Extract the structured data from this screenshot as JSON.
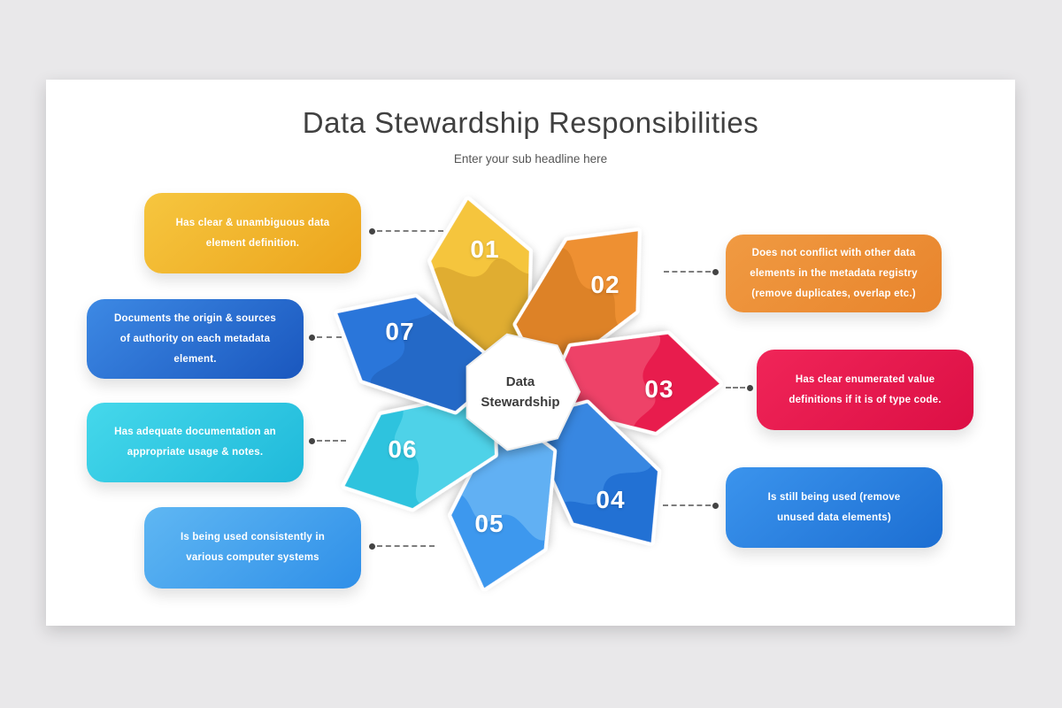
{
  "header": {
    "title": "Data Stewardship Responsibilities",
    "subtitle": "Enter your sub headline here"
  },
  "center": {
    "line1": "Data",
    "line2": "Stewardship"
  },
  "connector": {
    "dot_color": "#454545",
    "dash_color": "#7d7d7d"
  },
  "items": [
    {
      "number": "01",
      "text": "Has clear & unambiguous data element definition.",
      "box_gradient": {
        "from": "#F6C63F",
        "to": "#ECA41C"
      },
      "petal_color": "#F5C53E",
      "blob_color": "#CE9928",
      "blob_opacity": 0.55
    },
    {
      "number": "02",
      "text": "Does not conflict with other data elements in the metadata registry (remove duplicates, overlap etc.)",
      "box_gradient": {
        "from": "#F09A42",
        "to": "#E8842C"
      },
      "petal_color": "#EE9033",
      "blob_color": "#D2791F",
      "blob_opacity": 0.6
    },
    {
      "number": "03",
      "text": "Has clear enumerated value definitions if it is of type code.",
      "box_gradient": {
        "from": "#F02558",
        "to": "#DC0F45"
      },
      "petal_color": "#E81D4D",
      "blob_color": "#F25C7C",
      "blob_opacity": 0.6
    },
    {
      "number": "04",
      "text": "Is still being used (remove unused data elements)",
      "box_gradient": {
        "from": "#3B94ED",
        "to": "#1C6ED2"
      },
      "petal_color": "#2171D4",
      "blob_color": "#4593E8",
      "blob_opacity": 0.65
    },
    {
      "number": "05",
      "text": "Is being used consistently in various computer systems",
      "box_gradient": {
        "from": "#5FB7F3",
        "to": "#2F8FE8"
      },
      "petal_color": "#3E98EE",
      "blob_color": "#71BBF5",
      "blob_opacity": 0.7
    },
    {
      "number": "06",
      "text": "Has adequate documentation an appropriate usage & notes.",
      "box_gradient": {
        "from": "#45D8EB",
        "to": "#1FB9DA"
      },
      "petal_color": "#2DC3DE",
      "blob_color": "#5CD9EC",
      "blob_opacity": 0.7
    },
    {
      "number": "07",
      "text": "Documents the origin & sources of authority on each metadata element.",
      "box_gradient": {
        "from": "#3D89E4",
        "to": "#1A57BE"
      },
      "petal_color": "#2C76DA",
      "blob_color": "#1D5BB4",
      "blob_opacity": 0.5
    }
  ]
}
